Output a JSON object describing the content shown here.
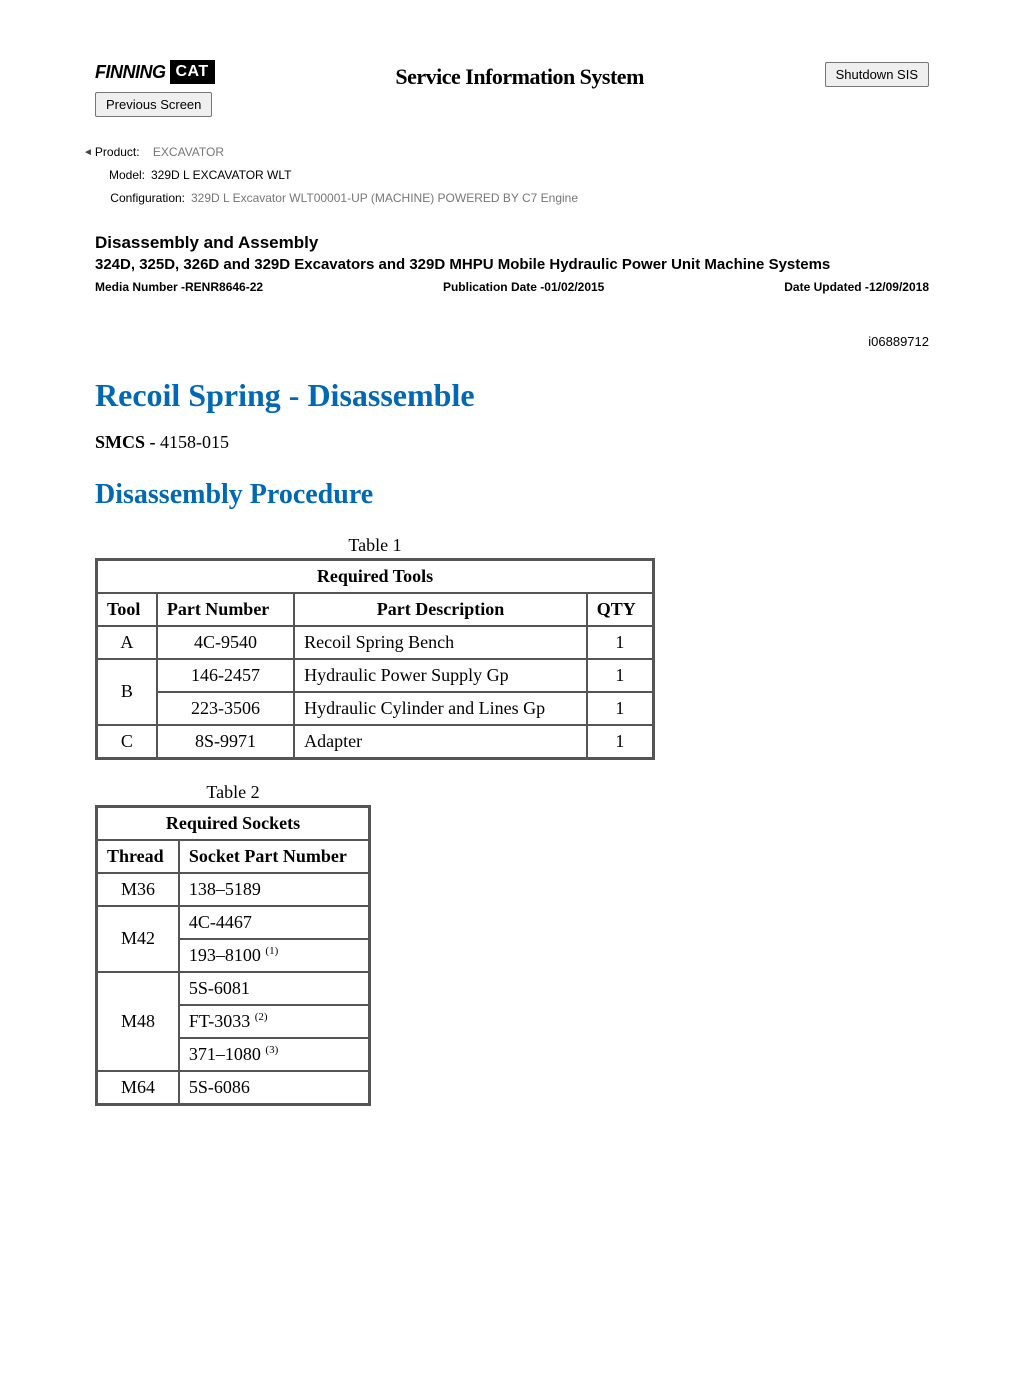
{
  "colors": {
    "heading_blue": "#0169b3",
    "meta_gray": "#777777",
    "border_gray": "#555555",
    "background": "#ffffff"
  },
  "header": {
    "logo_text_1": "FINNING",
    "logo_text_2": "CAT",
    "system_title": "Service Information System",
    "shutdown_label": "Shutdown SIS",
    "previous_label": "Previous Screen"
  },
  "product_meta": {
    "product_label": "Product:",
    "product_value": "EXCAVATOR",
    "model_label": "Model:",
    "model_value": "329D L EXCAVATOR WLT",
    "config_label": "Configuration:",
    "config_value": "329D L Excavator WLT00001-UP (MACHINE) POWERED BY C7 Engine"
  },
  "doc_header": {
    "section": "Disassembly and Assembly",
    "title": "324D, 325D, 326D and 329D Excavators and 329D MHPU Mobile Hydraulic Power Unit Machine Systems",
    "media_label": "Media Number -",
    "media_value": "RENR8646-22",
    "pub_label": "Publication Date -",
    "pub_value": "01/02/2015",
    "updated_label": "Date Updated -",
    "updated_value": "12/09/2018",
    "doc_id": "i06889712"
  },
  "titles": {
    "page_title": "Recoil Spring - Disassemble",
    "smcs_label": "SMCS -",
    "smcs_value": " 4158-015",
    "procedure_title": "Disassembly Procedure"
  },
  "table1": {
    "caption": "Table 1",
    "title": "Required Tools",
    "columns": [
      "Tool",
      "Part Number",
      "Part Description",
      "QTY"
    ],
    "rows": [
      {
        "tool": "A",
        "rowspan": 1,
        "parts": [
          {
            "number": "4C-9540",
            "desc": "Recoil Spring Bench",
            "qty": "1"
          }
        ]
      },
      {
        "tool": "B",
        "rowspan": 2,
        "parts": [
          {
            "number": "146-2457",
            "desc": "Hydraulic Power Supply Gp",
            "qty": "1"
          },
          {
            "number": "223-3506",
            "desc": "Hydraulic Cylinder and Lines Gp",
            "qty": "1"
          }
        ]
      },
      {
        "tool": "C",
        "rowspan": 1,
        "parts": [
          {
            "number": "8S-9971",
            "desc": "Adapter",
            "qty": "1"
          }
        ]
      }
    ]
  },
  "table2": {
    "caption": "Table 2",
    "title": "Required Sockets",
    "columns": [
      "Thread",
      "Socket Part Number"
    ],
    "rows": [
      {
        "thread": "M36",
        "rowspan": 1,
        "sockets": [
          {
            "text": "138–5189",
            "sup": ""
          }
        ]
      },
      {
        "thread": "M42",
        "rowspan": 2,
        "sockets": [
          {
            "text": "4C-4467",
            "sup": ""
          },
          {
            "text": "193–8100 ",
            "sup": "(1)"
          }
        ]
      },
      {
        "thread": "M48",
        "rowspan": 3,
        "sockets": [
          {
            "text": "5S-6081",
            "sup": ""
          },
          {
            "text": "FT-3033 ",
            "sup": "(2)"
          },
          {
            "text": "371–1080 ",
            "sup": "(3)"
          }
        ]
      },
      {
        "thread": "M64",
        "rowspan": 1,
        "sockets": [
          {
            "text": "5S-6086",
            "sup": ""
          }
        ]
      }
    ]
  }
}
